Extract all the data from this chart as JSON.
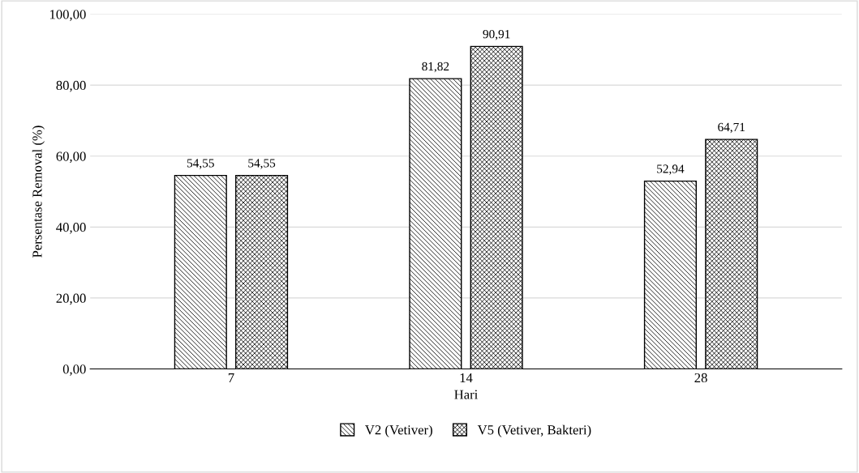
{
  "chart_data": {
    "type": "bar",
    "xlabel": "Hari",
    "ylabel": "Persentase Removal (%)",
    "categories": [
      "7",
      "14",
      "28"
    ],
    "series": [
      {
        "name": "V2 (Vetiver)",
        "color": "#000000",
        "values": [
          54.55,
          81.82,
          52.94
        ],
        "value_labels": [
          "54,55",
          "81,82",
          "52,94"
        ]
      },
      {
        "name": "V5 (Vetiver, Bakteri)",
        "color": "#000000",
        "values": [
          54.55,
          90.91,
          64.71
        ],
        "value_labels": [
          "54,55",
          "90,91",
          "64,71"
        ]
      }
    ],
    "ylim": [
      0,
      100
    ],
    "yticks": [
      {
        "value": 0,
        "label": "0,00"
      },
      {
        "value": 20,
        "label": "20,00"
      },
      {
        "value": 40,
        "label": "40,00"
      },
      {
        "value": 60,
        "label": "60,00"
      },
      {
        "value": 80,
        "label": "80,00"
      },
      {
        "value": 100,
        "label": "100,00"
      }
    ],
    "grid": "y",
    "legend": "bottom"
  }
}
